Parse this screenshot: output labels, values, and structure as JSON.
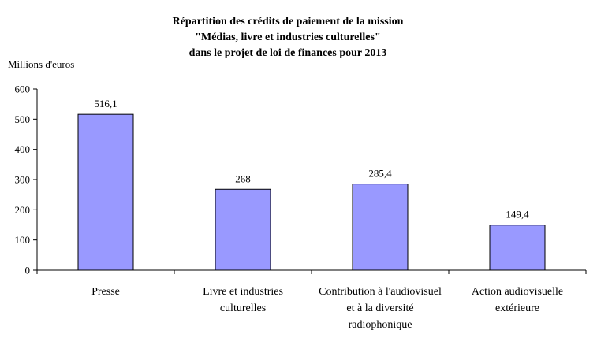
{
  "chart_data": {
    "type": "bar",
    "title_lines": [
      "Répartition des crédits de paiement de la mission",
      "\"Médias, livre et industries culturelles\"",
      "dans le projet de loi de finances pour 2013"
    ],
    "ylabel": "Millions d'euros",
    "xlabel": "",
    "ylim": [
      0,
      600
    ],
    "yticks": [
      "0",
      "100",
      "200",
      "300",
      "400",
      "500",
      "600"
    ],
    "categories": [
      [
        "Presse"
      ],
      [
        "Livre et industries",
        "culturelles"
      ],
      [
        "Contribution à l'audiovisuel",
        "et à la diversité",
        "radiophonique"
      ],
      [
        "Action audiovisuelle",
        "extérieure"
      ]
    ],
    "values": [
      516.1,
      268,
      285.4,
      149.4
    ],
    "value_labels": [
      "516,1",
      "268",
      "285,4",
      "149,4"
    ],
    "bar_color": "#9999ff",
    "grid": false,
    "legend": "none"
  }
}
